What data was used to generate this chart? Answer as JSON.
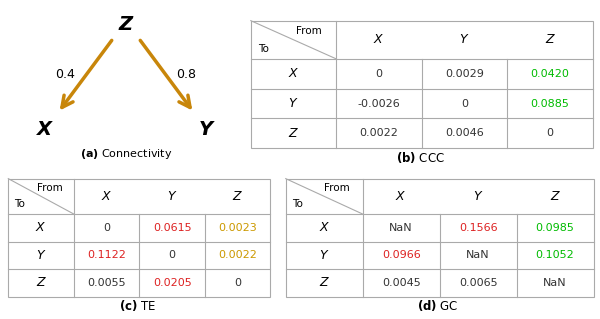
{
  "arrow_color": "#C8860A",
  "header_color": "#6688AA",
  "label_a_text": "Connectivity",
  "label_b_text": "CCC",
  "label_c_text": "TE",
  "label_d_text": "GC",
  "table_b": {
    "rows": [
      "X",
      "Y",
      "Z"
    ],
    "cols": [
      "X",
      "Y",
      "Z"
    ],
    "values": [
      [
        "0",
        "0.0029",
        "0.0420"
      ],
      [
        "-0.0026",
        "0",
        "0.0885"
      ],
      [
        "0.0022",
        "0.0046",
        "0"
      ]
    ],
    "colors": [
      [
        "#333333",
        "#333333",
        "#00BB00"
      ],
      [
        "#333333",
        "#333333",
        "#00BB00"
      ],
      [
        "#333333",
        "#333333",
        "#333333"
      ]
    ]
  },
  "table_c": {
    "rows": [
      "X",
      "Y",
      "Z"
    ],
    "cols": [
      "X",
      "Y",
      "Z"
    ],
    "values": [
      [
        "0",
        "0.0615",
        "0.0023"
      ],
      [
        "0.1122",
        "0",
        "0.0022"
      ],
      [
        "0.0055",
        "0.0205",
        "0"
      ]
    ],
    "colors": [
      [
        "#333333",
        "#DD2222",
        "#CC9900"
      ],
      [
        "#DD2222",
        "#333333",
        "#CC9900"
      ],
      [
        "#333333",
        "#DD2222",
        "#333333"
      ]
    ]
  },
  "table_d": {
    "rows": [
      "X",
      "Y",
      "Z"
    ],
    "cols": [
      "X",
      "Y",
      "Z"
    ],
    "values": [
      [
        "NaN",
        "0.1566",
        "0.0985"
      ],
      [
        "0.0966",
        "NaN",
        "0.1052"
      ],
      [
        "0.0045",
        "0.0065",
        "NaN"
      ]
    ],
    "colors": [
      [
        "#333333",
        "#DD2222",
        "#00BB00"
      ],
      [
        "#DD2222",
        "#333333",
        "#00BB00"
      ],
      [
        "#333333",
        "#333333",
        "#333333"
      ]
    ]
  }
}
